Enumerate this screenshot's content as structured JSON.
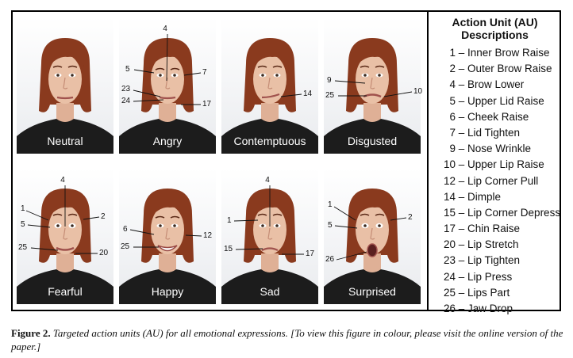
{
  "legend": {
    "title": "Action Unit (AU) Descriptions",
    "items": [
      {
        "code": "1",
        "label": "Inner Brow Raise"
      },
      {
        "code": "2",
        "label": "Outer Brow Raise"
      },
      {
        "code": "4",
        "label": "Brow Lower"
      },
      {
        "code": "5",
        "label": "Upper Lid Raise"
      },
      {
        "code": "6",
        "label": "Cheek Raise"
      },
      {
        "code": "7",
        "label": "Lid Tighten"
      },
      {
        "code": "9",
        "label": "Nose Wrinkle"
      },
      {
        "code": "10",
        "label": "Upper Lip Raise"
      },
      {
        "code": "12",
        "label": "Lip Corner Pull"
      },
      {
        "code": "14",
        "label": "Dimple"
      },
      {
        "code": "15",
        "label": "Lip Corner Depress"
      },
      {
        "code": "17",
        "label": "Chin Raise"
      },
      {
        "code": "20",
        "label": "Lip Stretch"
      },
      {
        "code": "23",
        "label": "Lip Tighten"
      },
      {
        "code": "24",
        "label": "Lip Press"
      },
      {
        "code": "25",
        "label": "Lips Part"
      },
      {
        "code": "26",
        "label": "Jaw Drop"
      }
    ]
  },
  "panels": [
    {
      "name": "neutral",
      "label": "Neutral",
      "au_labels": []
    },
    {
      "name": "angry",
      "label": "Angry",
      "au_labels": [
        "4",
        "5",
        "7",
        "23",
        "24",
        "17"
      ]
    },
    {
      "name": "contemptuous",
      "label": "Contemptuous",
      "au_labels": [
        "14"
      ]
    },
    {
      "name": "disgusted",
      "label": "Disgusted",
      "au_labels": [
        "9",
        "10",
        "25"
      ]
    },
    {
      "name": "fearful",
      "label": "Fearful",
      "au_labels": [
        "4",
        "1",
        "2",
        "5",
        "25",
        "20"
      ]
    },
    {
      "name": "happy",
      "label": "Happy",
      "au_labels": [
        "6",
        "12",
        "25"
      ]
    },
    {
      "name": "sad",
      "label": "Sad",
      "au_labels": [
        "4",
        "1",
        "15",
        "17"
      ]
    },
    {
      "name": "surprised",
      "label": "Surprised",
      "au_labels": [
        "1",
        "2",
        "5",
        "26"
      ]
    }
  ],
  "caption": {
    "label": "Figure 2.",
    "text": "Targeted action units (AU) for all emotional expressions. [To view this figure in colour, please visit the online version of the paper.]"
  },
  "colors": {
    "hair": "#8a3a1e",
    "skin": "#e9c0a6",
    "shirt": "#1c1c1c",
    "background": "#f2f3f5"
  }
}
